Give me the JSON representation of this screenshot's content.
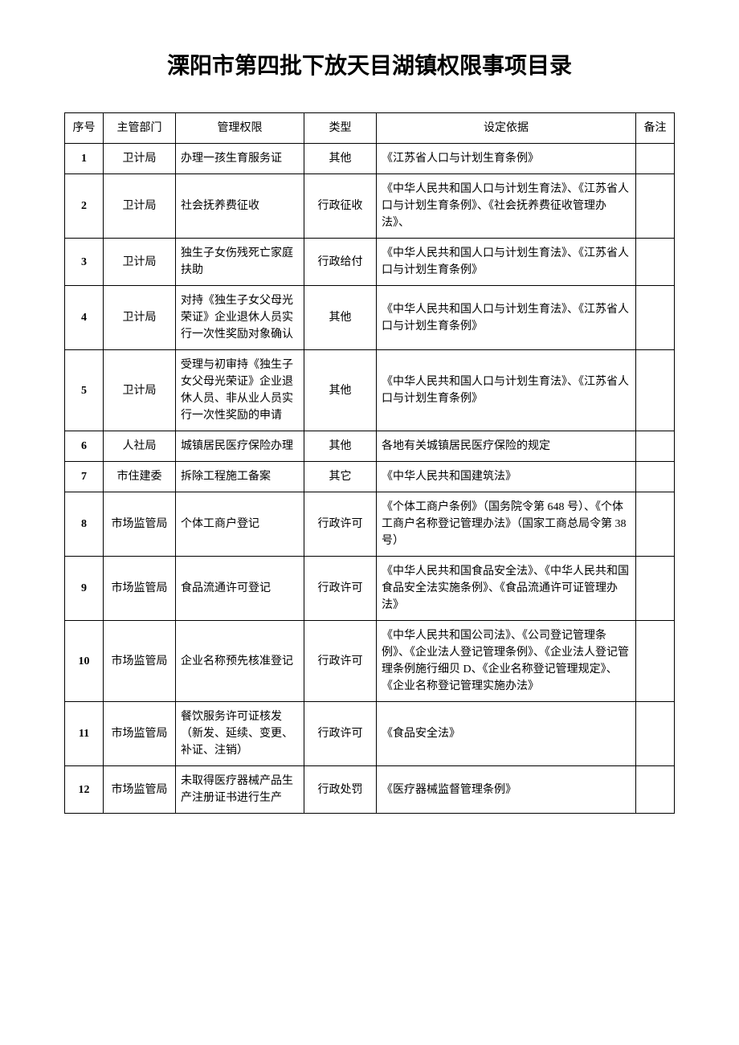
{
  "title": "溧阳市第四批下放天目湖镇权限事项目录",
  "table": {
    "columns": [
      "序号",
      "主管部门",
      "管理权限",
      "类型",
      "设定依据",
      "备注"
    ],
    "rows": [
      {
        "seq": "1",
        "dept": "卫计局",
        "perm": "办理一孩生育服务证",
        "type": "其他",
        "basis": "《江苏省人口与计划生育条例》",
        "remark": ""
      },
      {
        "seq": "2",
        "dept": "卫计局",
        "perm": "社会抚养费征收",
        "type": "行政征收",
        "basis": "《中华人民共和国人口与计划生育法》、《江苏省人口与计划生育条例》、《社会抚养费征收管理办法》、",
        "remark": ""
      },
      {
        "seq": "3",
        "dept": "卫计局",
        "perm": "独生子女伤残死亡家庭扶助",
        "type": "行政给付",
        "basis": "《中华人民共和国人口与计划生育法》、《江苏省人口与计划生育条例》",
        "remark": ""
      },
      {
        "seq": "4",
        "dept": "卫计局",
        "perm": "对持《独生子女父母光荣证》企业退休人员实行一次性奖励对象确认",
        "type": "其他",
        "basis": "《中华人民共和国人口与计划生育法》、《江苏省人口与计划生育条例》",
        "remark": ""
      },
      {
        "seq": "5",
        "dept": "卫计局",
        "perm": "受理与初审持《独生子女父母光荣证》企业退休人员、非从业人员实行一次性奖励的申请",
        "type": "其他",
        "basis": "《中华人民共和国人口与计划生育法》、《江苏省人口与计划生育条例》",
        "remark": ""
      },
      {
        "seq": "6",
        "dept": "人社局",
        "perm": "城镇居民医疗保险办理",
        "type": "其他",
        "basis": "各地有关城镇居民医疗保险的规定",
        "remark": ""
      },
      {
        "seq": "7",
        "dept": "市住建委",
        "perm": "拆除工程施工备案",
        "type": "其它",
        "basis": "《中华人民共和国建筑法》",
        "remark": ""
      },
      {
        "seq": "8",
        "dept": "市场监管局",
        "perm": "个体工商户登记",
        "type": "行政许可",
        "basis": "《个体工商户条例》（国务院令第 648 号）、《个体工商户名称登记管理办法》（国家工商总局令第 38 号）",
        "remark": ""
      },
      {
        "seq": "9",
        "dept": "市场监管局",
        "perm": "食品流通许可登记",
        "type": "行政许可",
        "basis": "《中华人民共和国食品安全法》、《中华人民共和国食品安全法实施条例》、《食品流通许可证管理办法》",
        "remark": ""
      },
      {
        "seq": "10",
        "dept": "市场监管局",
        "perm": "企业名称预先核准登记",
        "type": "行政许可",
        "basis": "《中华人民共和国公司法》、《公司登记管理条例》、《企业法人登记管理条例》、《企业法人登记管理条例施行细贝 D、《企业名称登记管理规定》、《企业名称登记管理实施办法》",
        "remark": ""
      },
      {
        "seq": "11",
        "dept": "市场监管局",
        "perm": "餐饮服务许可证核发（新发、延续、变更、补证、注销）",
        "type": "行政许可",
        "basis": "《食品安全法》",
        "remark": ""
      },
      {
        "seq": "12",
        "dept": "市场监管局",
        "perm": "未取得医疗器械产品生产注册证书进行生产",
        "type": "行政处罚",
        "basis": "《医疗器械监督管理条例》",
        "remark": ""
      }
    ]
  }
}
